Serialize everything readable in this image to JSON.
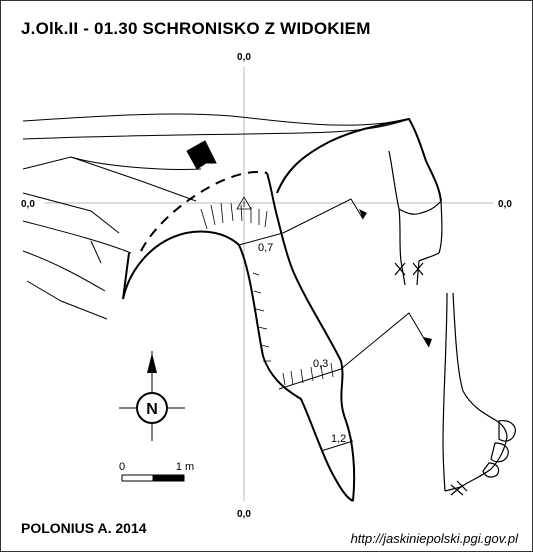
{
  "title": "J.Olk.II - 01.30  SCHRONISKO Z WIDOKIEM",
  "author": "POLONIUS A. 2014",
  "url": "http://jaskiniepolski.pgi.gov.pl",
  "datum_labels": {
    "top": "0,0",
    "bottom": "0,0",
    "left": "0,0",
    "right": "0,0"
  },
  "height_labels": [
    "0,7",
    "0,3",
    "1,2"
  ],
  "north_label": "N",
  "scale": {
    "start": "0",
    "end": "1 m"
  },
  "colors": {
    "ink": "#000000",
    "background": "#ffffff"
  }
}
